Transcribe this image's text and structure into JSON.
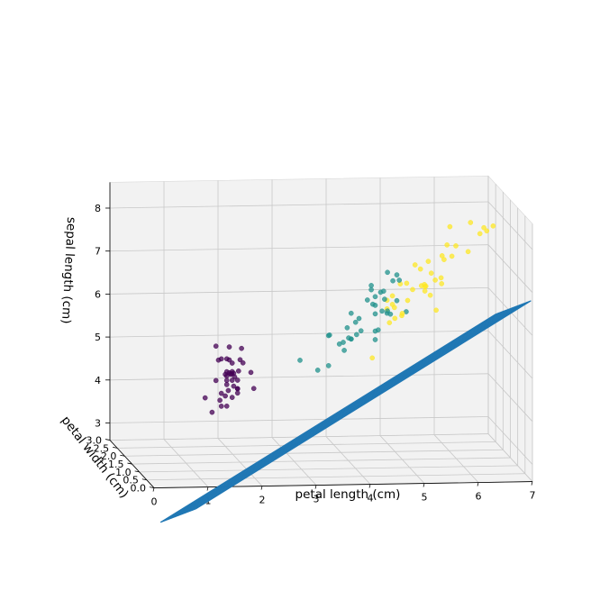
{
  "chart_data": {
    "type": "scatter",
    "projection": "3d",
    "xlabel": "petal length (cm)",
    "ylabel": "petal width (cm)",
    "zlabel": "sepal length (cm)",
    "x_ticks": [
      "0",
      "1",
      "2",
      "3",
      "4",
      "5",
      "6",
      "7"
    ],
    "y_ticks": [
      "0.0",
      "0.5",
      "1.0",
      "1.5",
      "2.0",
      "2.5",
      "3.0"
    ],
    "z_ticks": [
      "3",
      "4",
      "5",
      "6",
      "7",
      "8"
    ],
    "xlim": [
      0,
      7
    ],
    "ylim": [
      0,
      3
    ],
    "zlim": [
      2.6,
      8.6
    ],
    "grid": true,
    "colors": {
      "class_0": "#440154",
      "class_1": "#21918c",
      "class_2": "#fde725",
      "plane": "#1f77b4",
      "pane": "#f2f2f2",
      "pane_edge": "#d9d9d9",
      "grid": "#c8c8c8"
    },
    "plane": {
      "type": "wireframe",
      "z_function": "1.5 + 0.76 * petal_length - 0.5 * petal_width",
      "x_range": [
        0.8,
        7
      ],
      "y_range": [
        0.1,
        2.5
      ]
    },
    "series": [
      {
        "class": 0,
        "color": "#440154",
        "points": [
          {
            "x": 1.4,
            "y": 0.2,
            "z": 5.1
          },
          {
            "x": 1.4,
            "y": 0.2,
            "z": 4.9
          },
          {
            "x": 1.3,
            "y": 0.2,
            "z": 4.7
          },
          {
            "x": 1.5,
            "y": 0.2,
            "z": 4.6
          },
          {
            "x": 1.4,
            "y": 0.2,
            "z": 5.0
          },
          {
            "x": 1.7,
            "y": 0.4,
            "z": 5.4
          },
          {
            "x": 1.4,
            "y": 0.3,
            "z": 4.6
          },
          {
            "x": 1.5,
            "y": 0.2,
            "z": 5.0
          },
          {
            "x": 1.4,
            "y": 0.2,
            "z": 4.4
          },
          {
            "x": 1.5,
            "y": 0.1,
            "z": 4.9
          },
          {
            "x": 1.5,
            "y": 0.2,
            "z": 5.4
          },
          {
            "x": 1.6,
            "y": 0.2,
            "z": 4.8
          },
          {
            "x": 1.4,
            "y": 0.1,
            "z": 4.8
          },
          {
            "x": 1.1,
            "y": 0.1,
            "z": 4.3
          },
          {
            "x": 1.2,
            "y": 0.2,
            "z": 5.8
          },
          {
            "x": 1.5,
            "y": 0.4,
            "z": 5.7
          },
          {
            "x": 1.3,
            "y": 0.4,
            "z": 5.4
          },
          {
            "x": 1.4,
            "y": 0.3,
            "z": 5.1
          },
          {
            "x": 1.7,
            "y": 0.3,
            "z": 5.7
          },
          {
            "x": 1.5,
            "y": 0.3,
            "z": 5.1
          },
          {
            "x": 1.7,
            "y": 0.2,
            "z": 5.4
          },
          {
            "x": 1.5,
            "y": 0.4,
            "z": 5.1
          },
          {
            "x": 1.0,
            "y": 0.2,
            "z": 4.6
          },
          {
            "x": 1.7,
            "y": 0.5,
            "z": 5.1
          },
          {
            "x": 1.9,
            "y": 0.2,
            "z": 4.8
          },
          {
            "x": 1.6,
            "y": 0.2,
            "z": 5.0
          },
          {
            "x": 1.6,
            "y": 0.4,
            "z": 5.0
          },
          {
            "x": 1.5,
            "y": 0.2,
            "z": 5.2
          },
          {
            "x": 1.4,
            "y": 0.2,
            "z": 5.2
          },
          {
            "x": 1.6,
            "y": 0.2,
            "z": 4.7
          },
          {
            "x": 1.6,
            "y": 0.2,
            "z": 4.8
          },
          {
            "x": 1.5,
            "y": 0.4,
            "z": 5.4
          },
          {
            "x": 1.5,
            "y": 0.1,
            "z": 5.2
          },
          {
            "x": 1.4,
            "y": 0.2,
            "z": 5.5
          },
          {
            "x": 1.2,
            "y": 0.2,
            "z": 5.0
          },
          {
            "x": 1.3,
            "y": 0.2,
            "z": 5.5
          },
          {
            "x": 1.3,
            "y": 0.3,
            "z": 4.5
          },
          {
            "x": 1.6,
            "y": 0.6,
            "z": 5.0
          },
          {
            "x": 1.9,
            "y": 0.4,
            "z": 5.1
          },
          {
            "x": 1.3,
            "y": 0.2,
            "z": 4.4
          }
        ]
      },
      {
        "class": 1,
        "color": "#21918c",
        "points": [
          {
            "x": 4.7,
            "y": 1.4,
            "z": 7.0
          },
          {
            "x": 4.5,
            "y": 1.5,
            "z": 6.4
          },
          {
            "x": 4.9,
            "y": 1.5,
            "z": 6.9
          },
          {
            "x": 4.0,
            "y": 1.3,
            "z": 5.5
          },
          {
            "x": 4.6,
            "y": 1.5,
            "z": 6.5
          },
          {
            "x": 4.5,
            "y": 1.3,
            "z": 5.7
          },
          {
            "x": 4.7,
            "y": 1.6,
            "z": 6.3
          },
          {
            "x": 3.3,
            "y": 1.0,
            "z": 4.9
          },
          {
            "x": 4.6,
            "y": 1.3,
            "z": 6.6
          },
          {
            "x": 3.9,
            "y": 1.4,
            "z": 5.2
          },
          {
            "x": 3.5,
            "y": 1.0,
            "z": 5.0
          },
          {
            "x": 4.2,
            "y": 1.5,
            "z": 5.9
          },
          {
            "x": 4.0,
            "y": 1.0,
            "z": 6.0
          },
          {
            "x": 4.7,
            "y": 1.4,
            "z": 6.1
          },
          {
            "x": 3.6,
            "y": 1.3,
            "z": 5.6
          },
          {
            "x": 4.4,
            "y": 1.4,
            "z": 6.7
          },
          {
            "x": 4.5,
            "y": 1.5,
            "z": 5.6
          },
          {
            "x": 4.1,
            "y": 1.0,
            "z": 5.8
          },
          {
            "x": 4.5,
            "y": 1.5,
            "z": 6.2
          },
          {
            "x": 3.9,
            "y": 1.1,
            "z": 5.6
          },
          {
            "x": 4.8,
            "y": 1.8,
            "z": 5.9
          },
          {
            "x": 4.0,
            "y": 1.3,
            "z": 6.1
          },
          {
            "x": 4.9,
            "y": 1.5,
            "z": 6.3
          },
          {
            "x": 4.7,
            "y": 1.2,
            "z": 6.1
          },
          {
            "x": 4.3,
            "y": 1.3,
            "z": 6.4
          },
          {
            "x": 4.4,
            "y": 1.4,
            "z": 6.6
          },
          {
            "x": 4.8,
            "y": 1.4,
            "z": 6.8
          },
          {
            "x": 5.0,
            "y": 1.7,
            "z": 6.7
          },
          {
            "x": 4.5,
            "y": 1.5,
            "z": 6.0
          },
          {
            "x": 3.5,
            "y": 1.0,
            "z": 5.7
          },
          {
            "x": 3.8,
            "y": 1.1,
            "z": 5.5
          },
          {
            "x": 3.7,
            "y": 1.0,
            "z": 5.5
          },
          {
            "x": 3.9,
            "y": 1.2,
            "z": 5.8
          },
          {
            "x": 5.1,
            "y": 1.6,
            "z": 6.0
          },
          {
            "x": 4.5,
            "y": 1.5,
            "z": 5.4
          },
          {
            "x": 4.4,
            "y": 1.3,
            "z": 6.3
          },
          {
            "x": 4.1,
            "y": 1.3,
            "z": 5.6
          },
          {
            "x": 4.0,
            "y": 1.3,
            "z": 5.5
          },
          {
            "x": 4.6,
            "y": 1.4,
            "z": 6.1
          },
          {
            "x": 3.0,
            "y": 1.1,
            "z": 5.1
          }
        ]
      },
      {
        "class": 2,
        "color": "#fde725",
        "points": [
          {
            "x": 6.0,
            "y": 2.5,
            "z": 6.3
          },
          {
            "x": 5.1,
            "y": 1.9,
            "z": 5.8
          },
          {
            "x": 5.9,
            "y": 2.1,
            "z": 7.1
          },
          {
            "x": 5.6,
            "y": 1.8,
            "z": 6.3
          },
          {
            "x": 5.8,
            "y": 2.2,
            "z": 6.5
          },
          {
            "x": 6.6,
            "y": 2.1,
            "z": 7.6
          },
          {
            "x": 4.5,
            "y": 1.7,
            "z": 4.9
          },
          {
            "x": 6.3,
            "y": 1.8,
            "z": 7.3
          },
          {
            "x": 5.8,
            "y": 1.8,
            "z": 6.7
          },
          {
            "x": 6.1,
            "y": 2.5,
            "z": 7.2
          },
          {
            "x": 5.1,
            "y": 2.0,
            "z": 6.5
          },
          {
            "x": 5.3,
            "y": 1.9,
            "z": 6.4
          },
          {
            "x": 5.5,
            "y": 2.1,
            "z": 6.8
          },
          {
            "x": 5.0,
            "y": 2.0,
            "z": 5.7
          },
          {
            "x": 5.1,
            "y": 2.4,
            "z": 5.8
          },
          {
            "x": 5.3,
            "y": 2.3,
            "z": 6.4
          },
          {
            "x": 5.5,
            "y": 1.8,
            "z": 6.5
          },
          {
            "x": 6.7,
            "y": 2.2,
            "z": 7.7
          },
          {
            "x": 6.9,
            "y": 2.3,
            "z": 7.7
          },
          {
            "x": 5.0,
            "y": 1.5,
            "z": 6.0
          },
          {
            "x": 5.7,
            "y": 2.3,
            "z": 6.9
          },
          {
            "x": 4.9,
            "y": 2.0,
            "z": 5.6
          },
          {
            "x": 6.7,
            "y": 2.0,
            "z": 7.7
          },
          {
            "x": 4.9,
            "y": 1.8,
            "z": 6.3
          },
          {
            "x": 5.7,
            "y": 2.1,
            "z": 6.7
          },
          {
            "x": 6.0,
            "y": 1.8,
            "z": 7.2
          },
          {
            "x": 4.8,
            "y": 1.8,
            "z": 6.2
          },
          {
            "x": 4.9,
            "y": 1.8,
            "z": 6.1
          },
          {
            "x": 5.6,
            "y": 2.1,
            "z": 6.4
          },
          {
            "x": 5.8,
            "y": 1.6,
            "z": 7.2
          },
          {
            "x": 6.1,
            "y": 1.9,
            "z": 7.4
          },
          {
            "x": 6.4,
            "y": 2.0,
            "z": 7.9
          },
          {
            "x": 5.6,
            "y": 2.2,
            "z": 6.4
          },
          {
            "x": 5.1,
            "y": 1.5,
            "z": 6.3
          },
          {
            "x": 5.6,
            "y": 1.4,
            "z": 6.1
          },
          {
            "x": 6.1,
            "y": 2.3,
            "z": 7.7
          },
          {
            "x": 5.6,
            "y": 2.4,
            "z": 6.3
          },
          {
            "x": 5.5,
            "y": 1.8,
            "z": 6.4
          },
          {
            "x": 4.8,
            "y": 1.8,
            "z": 6.0
          },
          {
            "x": 5.4,
            "y": 2.1,
            "z": 6.9
          }
        ]
      }
    ]
  }
}
